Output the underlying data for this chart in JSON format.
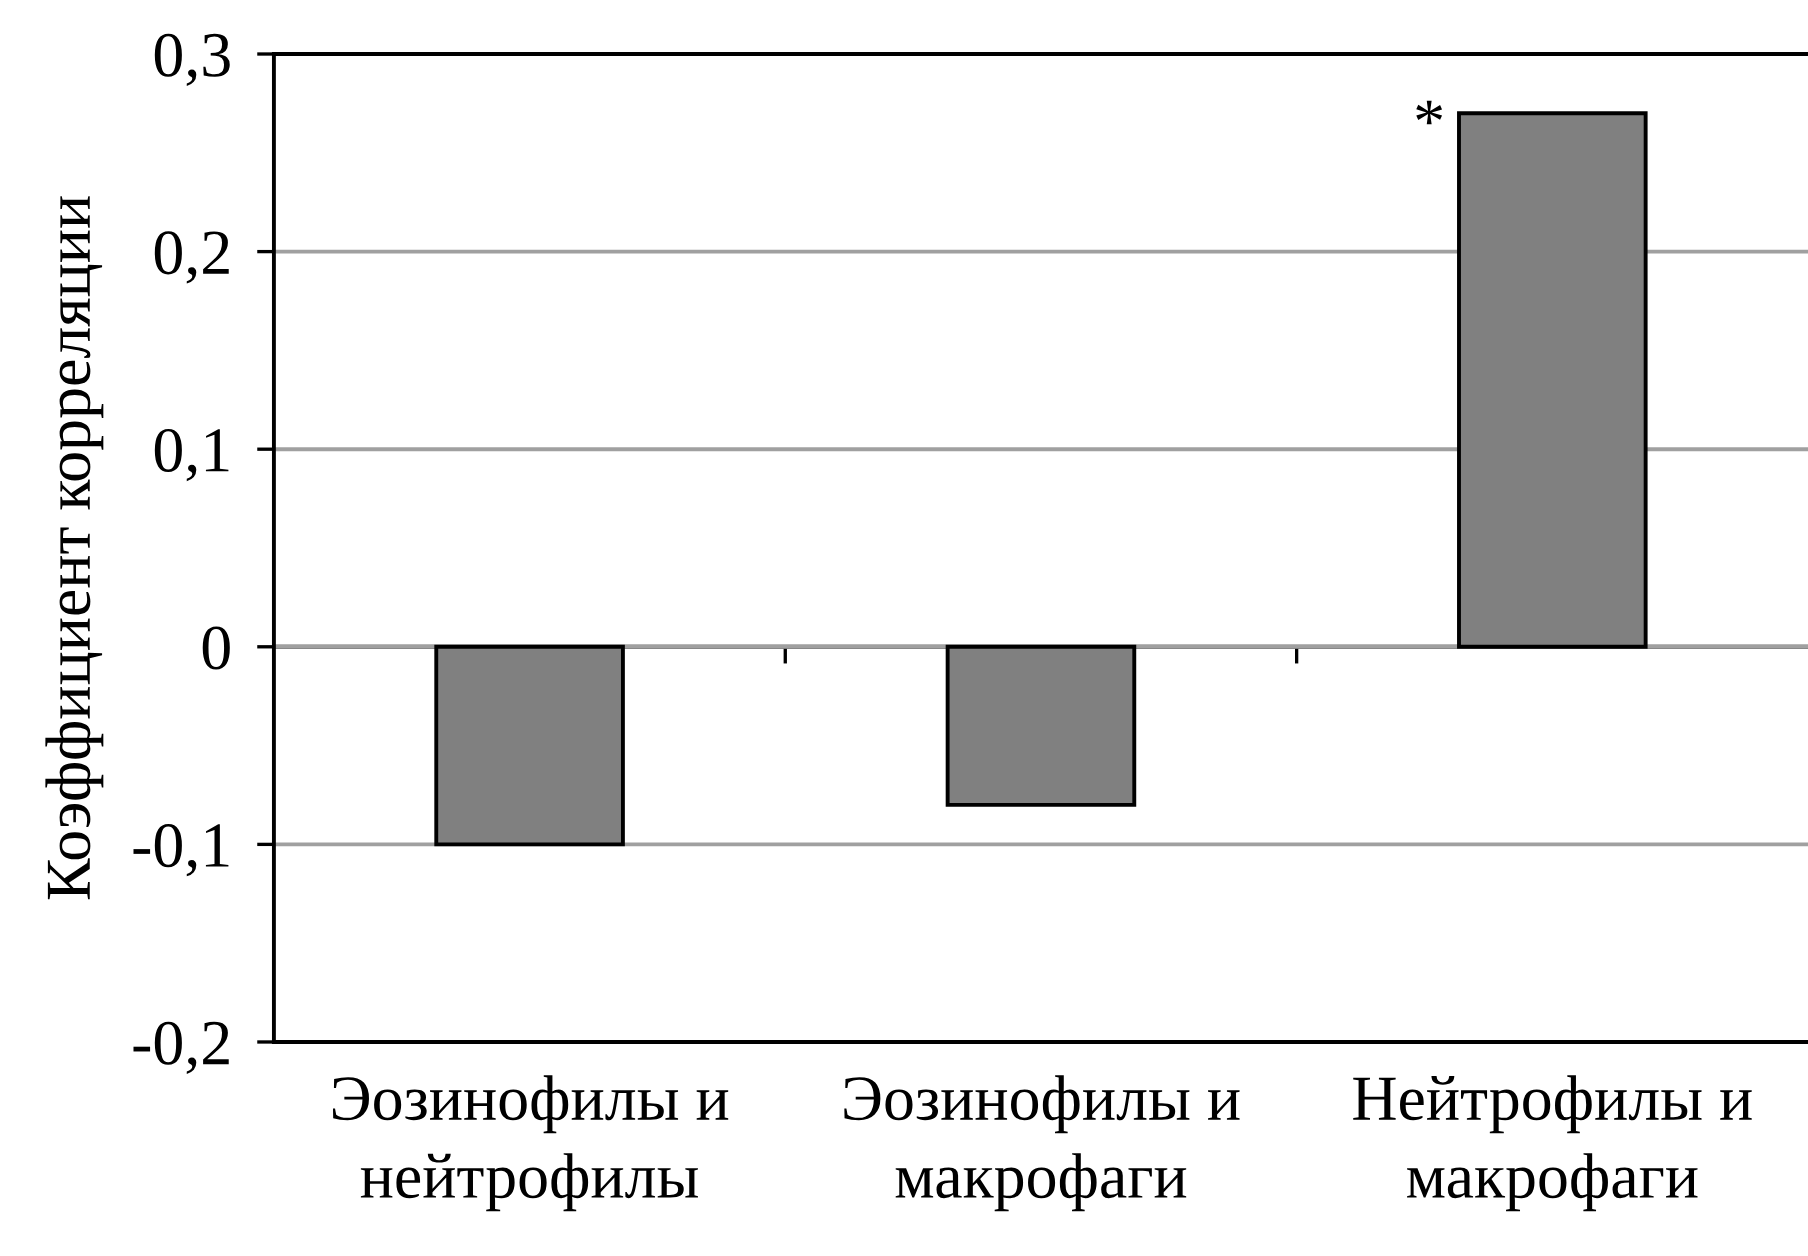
{
  "chart_data": {
    "type": "bar",
    "ylabel": "Коэффициент корреляции",
    "categories": [
      "Эозинофилы и\nнейтрофилы",
      "Эозинофилы и\nмакрофаги",
      "Нейтрофилы и\nмакрофаги"
    ],
    "values": [
      -0.1,
      -0.08,
      0.27
    ],
    "color": "#808080",
    "ylim": [
      -0.2,
      0.3
    ],
    "yticks": [
      {
        "value": -0.2,
        "label": "-0,2"
      },
      {
        "value": -0.1,
        "label": "-0,1"
      },
      0,
      {
        "value": 0.1,
        "label": "0,1"
      },
      {
        "value": 0.2,
        "label": "0,2"
      },
      {
        "value": 0.3,
        "label": "0,3"
      }
    ],
    "grid": "y",
    "annotations": [
      {
        "text": "*",
        "x": "Нейтрофилы и\nмакрофаги",
        "y": 0.27
      }
    ]
  }
}
